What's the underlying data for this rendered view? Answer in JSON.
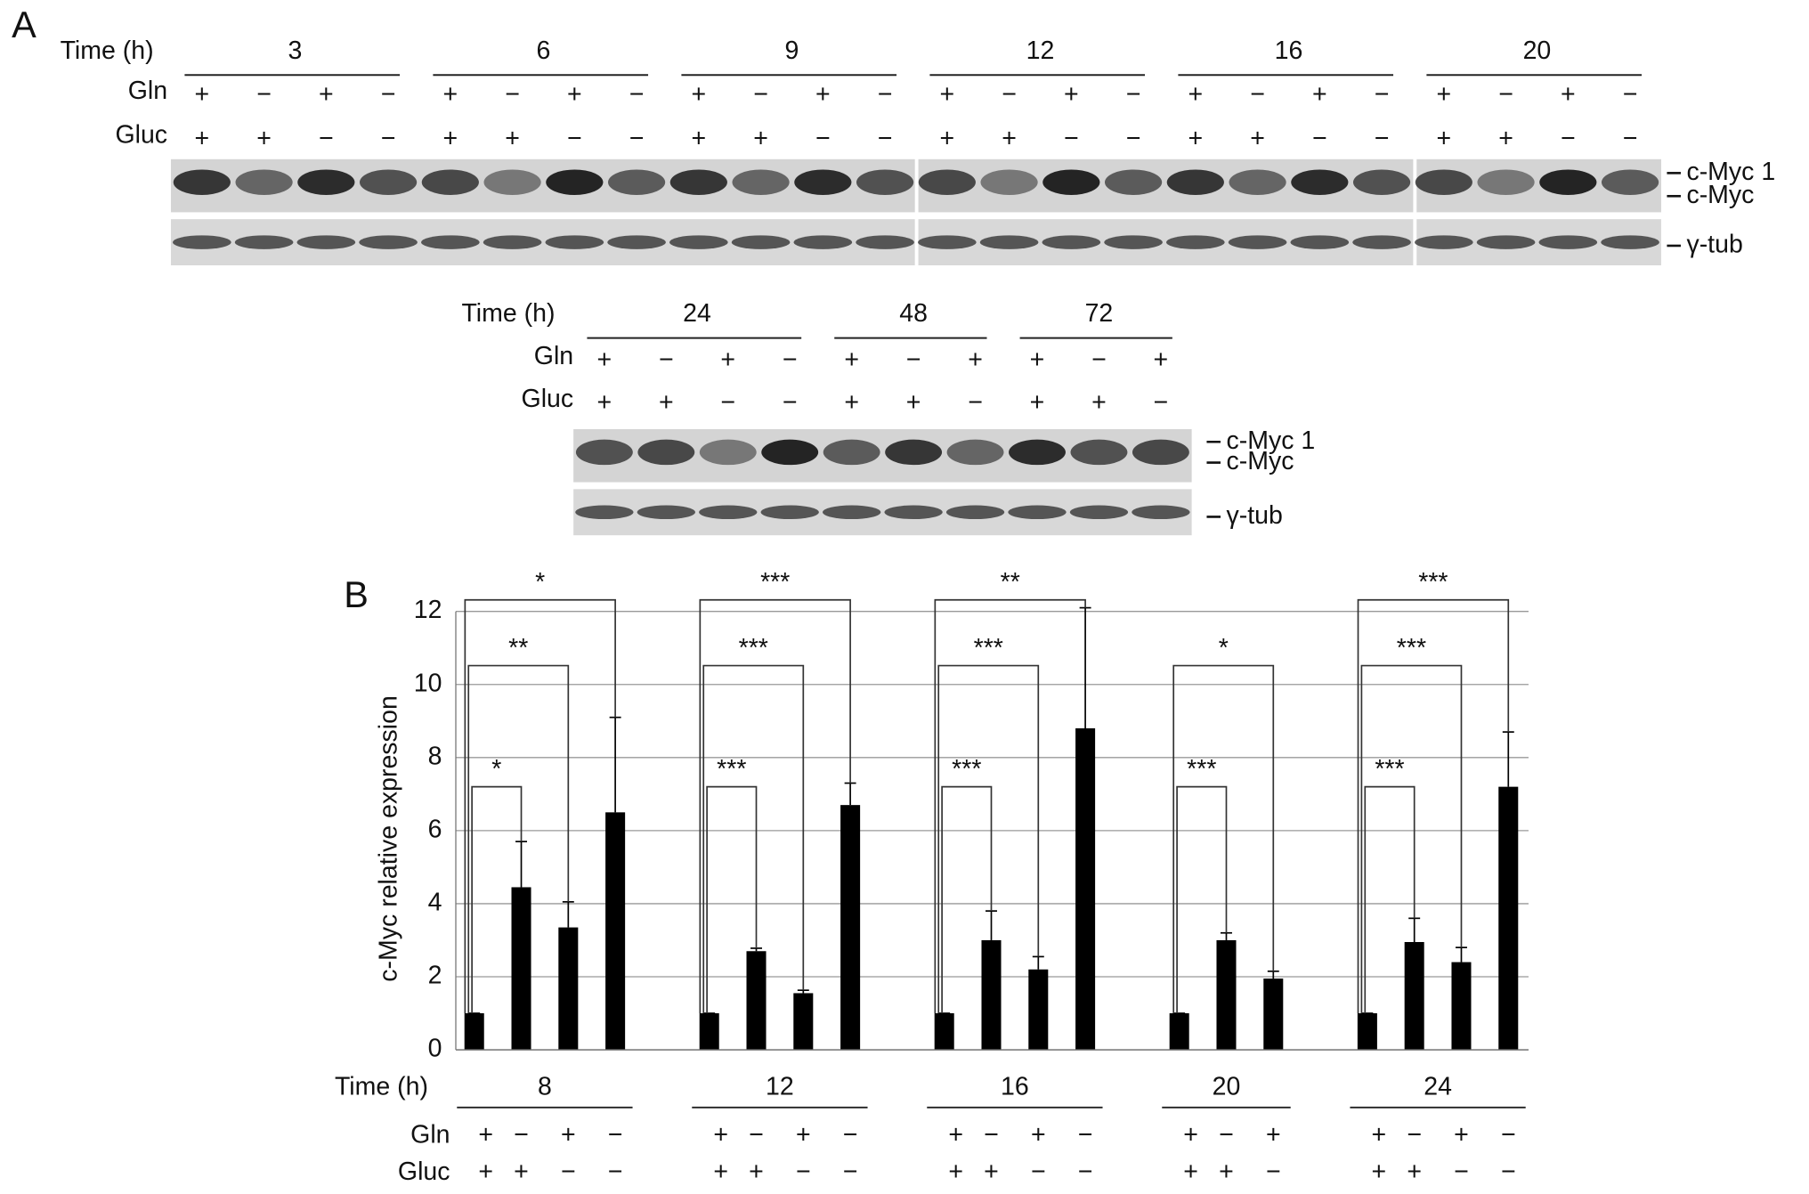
{
  "panel_a": {
    "label": "A",
    "rows": [
      {
        "time_label": "Time (h)",
        "gln_label": "Gln",
        "gluc_label": "Gluc",
        "groups": [
          {
            "time": "3",
            "gln": [
              "+",
              "−",
              "+",
              "−"
            ],
            "gluc": [
              "+",
              "+",
              "−",
              "−"
            ]
          },
          {
            "time": "6",
            "gln": [
              "+",
              "−",
              "+",
              "−"
            ],
            "gluc": [
              "+",
              "+",
              "−",
              "−"
            ]
          },
          {
            "time": "9",
            "gln": [
              "+",
              "−",
              "+",
              "−"
            ],
            "gluc": [
              "+",
              "+",
              "−",
              "−"
            ]
          },
          {
            "time": "12",
            "gln": [
              "+",
              "−",
              "+",
              "−"
            ],
            "gluc": [
              "+",
              "+",
              "−",
              "−"
            ]
          },
          {
            "time": "16",
            "gln": [
              "+",
              "−",
              "+",
              "−"
            ],
            "gluc": [
              "+",
              "+",
              "−",
              "−"
            ]
          },
          {
            "time": "20",
            "gln": [
              "+",
              "−",
              "+",
              "−"
            ],
            "gluc": [
              "+",
              "+",
              "−",
              "−"
            ]
          }
        ],
        "bands": [
          "c-Myc 1",
          "c-Myc",
          "γ-tub"
        ]
      },
      {
        "time_label": "Time (h)",
        "gln_label": "Gln",
        "gluc_label": "Gluc",
        "groups": [
          {
            "time": "24",
            "gln": [
              "+",
              "−",
              "+",
              "−"
            ],
            "gluc": [
              "+",
              "+",
              "−",
              "−"
            ]
          },
          {
            "time": "48",
            "gln": [
              "+",
              "−",
              "+"
            ],
            "gluc": [
              "+",
              "+",
              "−"
            ]
          },
          {
            "time": "72",
            "gln": [
              "+",
              "−",
              "+"
            ],
            "gluc": [
              "+",
              "+",
              "−"
            ]
          }
        ],
        "bands": [
          "c-Myc 1",
          "c-Myc",
          "γ-tub"
        ]
      }
    ]
  },
  "chart_data": {
    "type": "bar",
    "panel_label": "B",
    "y_label": "c-Myc relative expression",
    "ylim": [
      0,
      12
    ],
    "yticks": [
      0,
      2,
      4,
      6,
      8,
      10,
      12
    ],
    "grid": true,
    "color": "#000000",
    "time_label": "Time (h)",
    "gln_label": "Gln",
    "gluc_label": "Gluc",
    "groups": [
      {
        "time": "8",
        "gln": [
          "+",
          "−",
          "+",
          "−"
        ],
        "gluc": [
          "+",
          "+",
          "−",
          "−"
        ],
        "values": [
          1,
          4.45,
          3.35,
          6.5
        ],
        "errors": [
          0,
          1.25,
          0.7,
          2.6
        ],
        "significance": [
          "*",
          "**",
          "*"
        ]
      },
      {
        "time": "12",
        "gln": [
          "+",
          "−",
          "+",
          "−"
        ],
        "gluc": [
          "+",
          "+",
          "−",
          "−"
        ],
        "values": [
          1,
          2.7,
          1.55,
          6.7
        ],
        "errors": [
          0,
          0.08,
          0.08,
          0.6
        ],
        "significance": [
          "***",
          "***",
          "***"
        ]
      },
      {
        "time": "16",
        "gln": [
          "+",
          "−",
          "+",
          "−"
        ],
        "gluc": [
          "+",
          "+",
          "−",
          "−"
        ],
        "values": [
          1,
          3.0,
          2.2,
          8.8
        ],
        "errors": [
          0,
          0.8,
          0.35,
          3.3
        ],
        "significance": [
          "***",
          "***",
          "**"
        ]
      },
      {
        "time": "20",
        "gln": [
          "+",
          "−",
          "+"
        ],
        "gluc": [
          "+",
          "+",
          "−"
        ],
        "values": [
          1,
          3.0,
          1.95
        ],
        "errors": [
          0,
          0.2,
          0.2
        ],
        "significance": [
          "***",
          "*"
        ]
      },
      {
        "time": "24",
        "gln": [
          "+",
          "−",
          "+",
          "−"
        ],
        "gluc": [
          "+",
          "+",
          "−",
          "−"
        ],
        "values": [
          1,
          2.95,
          2.4,
          7.2
        ],
        "errors": [
          0,
          0.65,
          0.4,
          1.5
        ],
        "significance": [
          "***",
          "***",
          "***"
        ]
      }
    ]
  }
}
